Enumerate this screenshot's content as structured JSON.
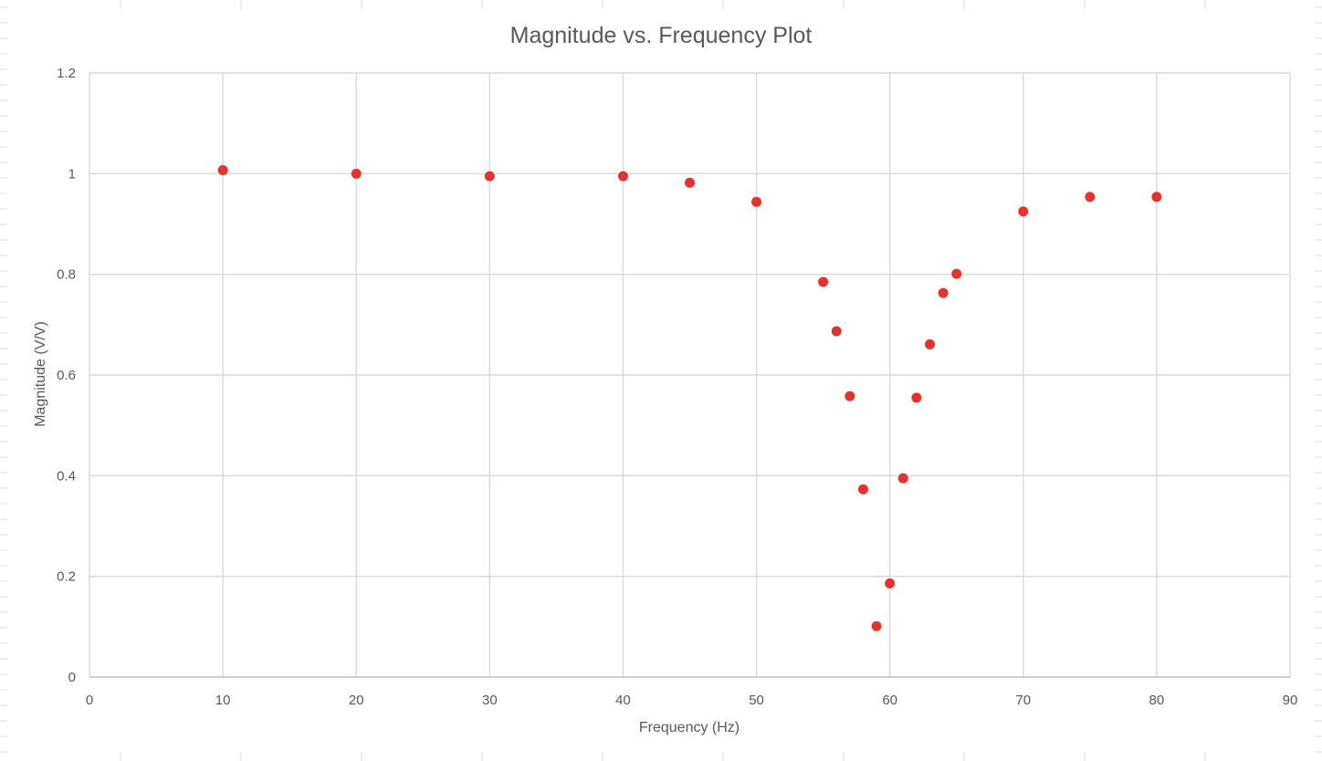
{
  "chart_data": {
    "type": "scatter",
    "title": "Magnitude vs. Frequency Plot",
    "xlabel": "Frequency (Hz)",
    "ylabel": "Magnitude (V/V)",
    "xlim": [
      0,
      90
    ],
    "ylim": [
      0,
      1.2
    ],
    "x_ticks": [
      "0",
      "10",
      "20",
      "30",
      "40",
      "50",
      "60",
      "70",
      "80",
      "90"
    ],
    "y_ticks": [
      "0",
      "0.2",
      "0.4",
      "0.6",
      "0.8",
      "1",
      "1.2"
    ],
    "grid": true,
    "legend": "none",
    "series": [
      {
        "color": "#e8312a",
        "points": [
          {
            "x": 10,
            "y": 1.007
          },
          {
            "x": 20,
            "y": 1.0
          },
          {
            "x": 30,
            "y": 0.995
          },
          {
            "x": 40,
            "y": 0.995
          },
          {
            "x": 45,
            "y": 0.982
          },
          {
            "x": 50,
            "y": 0.944
          },
          {
            "x": 55,
            "y": 0.785
          },
          {
            "x": 56,
            "y": 0.687
          },
          {
            "x": 57,
            "y": 0.558
          },
          {
            "x": 58,
            "y": 0.373
          },
          {
            "x": 59,
            "y": 0.101
          },
          {
            "x": 60,
            "y": 0.186
          },
          {
            "x": 61,
            "y": 0.395
          },
          {
            "x": 62,
            "y": 0.555
          },
          {
            "x": 63,
            "y": 0.661
          },
          {
            "x": 64,
            "y": 0.763
          },
          {
            "x": 65,
            "y": 0.801
          },
          {
            "x": 70,
            "y": 0.925
          },
          {
            "x": 75,
            "y": 0.954
          },
          {
            "x": 80,
            "y": 0.954
          }
        ]
      }
    ]
  }
}
